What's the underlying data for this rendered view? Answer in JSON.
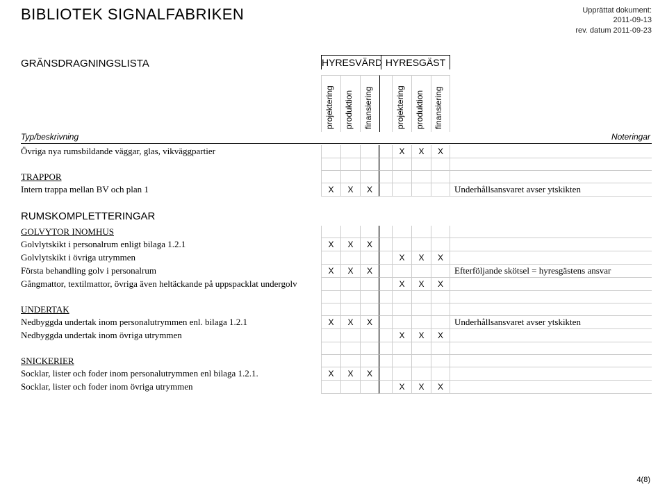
{
  "doc": {
    "title": "BIBLIOTEK SIGNALFABRIKEN",
    "meta1": "Upprättat dokument:",
    "meta2": "2011-09-13",
    "meta3": "rev. datum 2011-09-23",
    "subtitle": "GRÄNSDRAGNINGSLISTA",
    "group1": "HYRESVÄRD",
    "group2": "HYRESGÄST",
    "rot": [
      "projektering",
      "produktion",
      "finansiering",
      "projektering",
      "produktion",
      "finansiering"
    ],
    "typ_label": "Typ/beskrivning",
    "notes_label": "Noteringar",
    "footer": "4(8)"
  },
  "rows": [
    {
      "desc": "Övriga nya rumsbildande väggar, glas, vikväggpartier",
      "x": [
        "",
        "",
        "",
        "X",
        "X",
        "X"
      ],
      "note": ""
    },
    {
      "type": "spacer"
    },
    {
      "desc": "TRAPPOR",
      "underline": true,
      "x": [
        "",
        "",
        "",
        "",
        "",
        ""
      ],
      "note": ""
    },
    {
      "desc": "Intern trappa mellan BV och plan 1",
      "x": [
        "X",
        "X",
        "X",
        "",
        "",
        ""
      ],
      "note": "Underhållsansvaret avser ytskikten"
    },
    {
      "type": "section",
      "desc": "RUMSKOMPLETTERINGAR"
    },
    {
      "desc": "GOLVYTOR INOMHUS",
      "underline": true,
      "x": [
        "",
        "",
        "",
        "",
        "",
        ""
      ],
      "note": ""
    },
    {
      "desc": "Golvlytskikt i personalrum enligt bilaga 1.2.1",
      "x": [
        "X",
        "X",
        "X",
        "",
        "",
        ""
      ],
      "note": ""
    },
    {
      "desc": "Golvlytskikt i övriga utrymmen",
      "x": [
        "",
        "",
        "",
        "X",
        "X",
        "X"
      ],
      "note": ""
    },
    {
      "desc": "Första  behandling golv i personalrum",
      "x": [
        "X",
        "X",
        "X",
        "",
        "",
        ""
      ],
      "note": "Efterföljande skötsel = hyresgästens ansvar"
    },
    {
      "desc": "Gångmattor, textilmattor, övriga även heltäckande på uppspacklat undergolv",
      "x": [
        "",
        "",
        "",
        "X",
        "X",
        "X"
      ],
      "note": ""
    },
    {
      "type": "spacer"
    },
    {
      "desc": "UNDERTAK",
      "underline": true,
      "x": [
        "",
        "",
        "",
        "",
        "",
        ""
      ],
      "note": ""
    },
    {
      "desc": "Nedbyggda undertak inom personalutrymmen enl. bilaga 1.2.1",
      "x": [
        "X",
        "X",
        "X",
        "",
        "",
        ""
      ],
      "note": "Underhållsansvaret avser ytskikten"
    },
    {
      "desc": "Nedbyggda undertak inom övriga utrymmen",
      "x": [
        "",
        "",
        "",
        "X",
        "X",
        "X"
      ],
      "note": ""
    },
    {
      "type": "spacer"
    },
    {
      "desc": "SNICKERIER",
      "underline": true,
      "x": [
        "",
        "",
        "",
        "",
        "",
        ""
      ],
      "note": ""
    },
    {
      "desc": "Socklar, lister och foder inom personalutrymmen enl bilaga 1.2.1.",
      "x": [
        "X",
        "X",
        "X",
        "",
        "",
        ""
      ],
      "note": ""
    },
    {
      "desc": "Socklar, lister och foder inom övriga utrymmen",
      "x": [
        "",
        "",
        "",
        "X",
        "X",
        "X"
      ],
      "note": ""
    }
  ]
}
